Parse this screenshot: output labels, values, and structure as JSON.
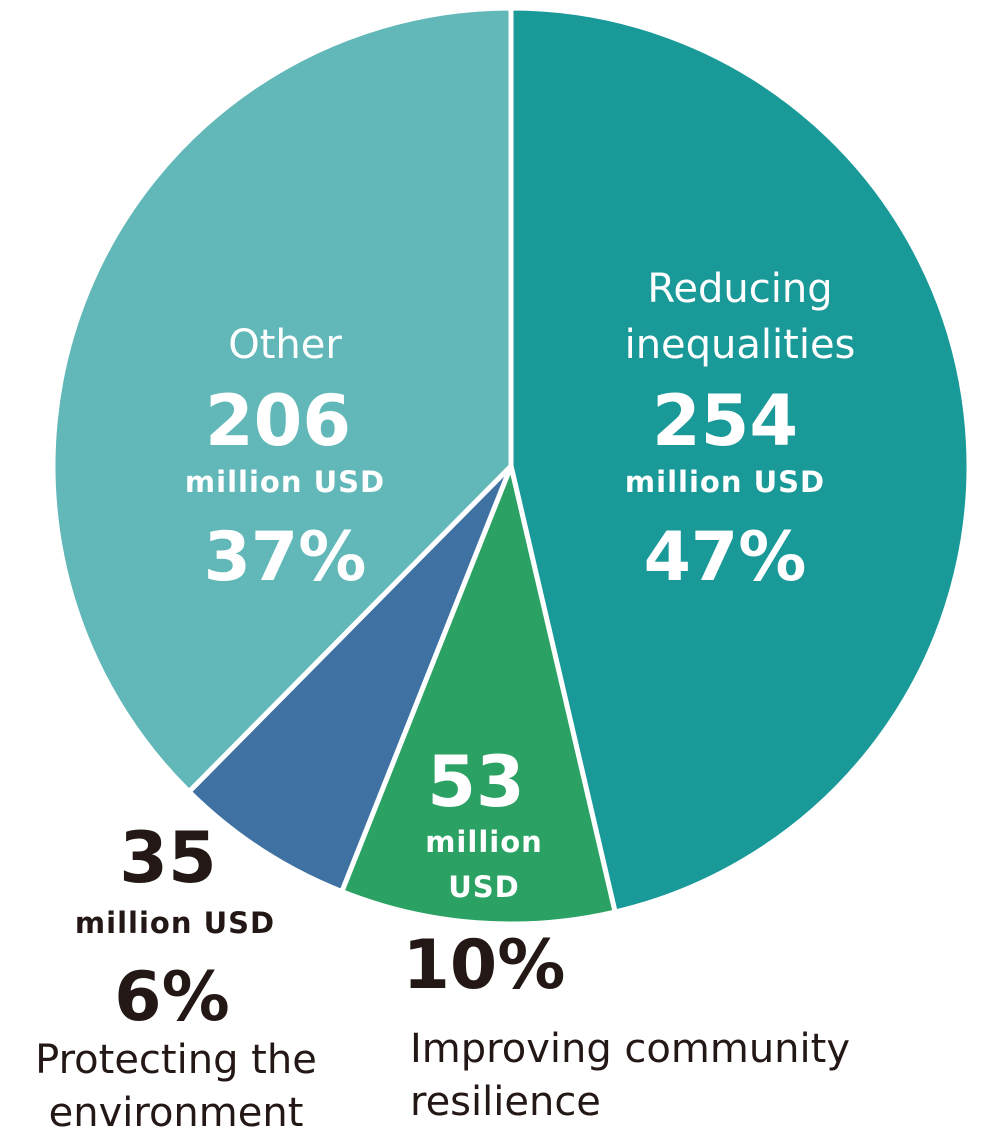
{
  "chart_data": {
    "type": "pie",
    "start_angle": "12 o'clock",
    "direction": "clockwise",
    "slices": [
      {
        "label_lines": [
          "Reducing",
          "inequalities"
        ],
        "value": 254,
        "unit_lines": [
          "million USD"
        ],
        "percent": "47%",
        "color": "#1a9999"
      },
      {
        "label_lines": [
          "Improving community",
          "resilience"
        ],
        "value": 53,
        "unit_lines": [
          "million",
          "USD"
        ],
        "percent": "10%",
        "color": "#2ba263"
      },
      {
        "label_lines": [
          "Protecting the",
          "environment"
        ],
        "value": 35,
        "unit_lines": [
          "million USD"
        ],
        "percent": "6%",
        "color": "#3f71a2"
      },
      {
        "label_lines": [
          "Other"
        ],
        "value": 206,
        "unit_lines": [
          "million USD"
        ],
        "percent": "37%",
        "color": "#62b8b8"
      }
    ]
  }
}
